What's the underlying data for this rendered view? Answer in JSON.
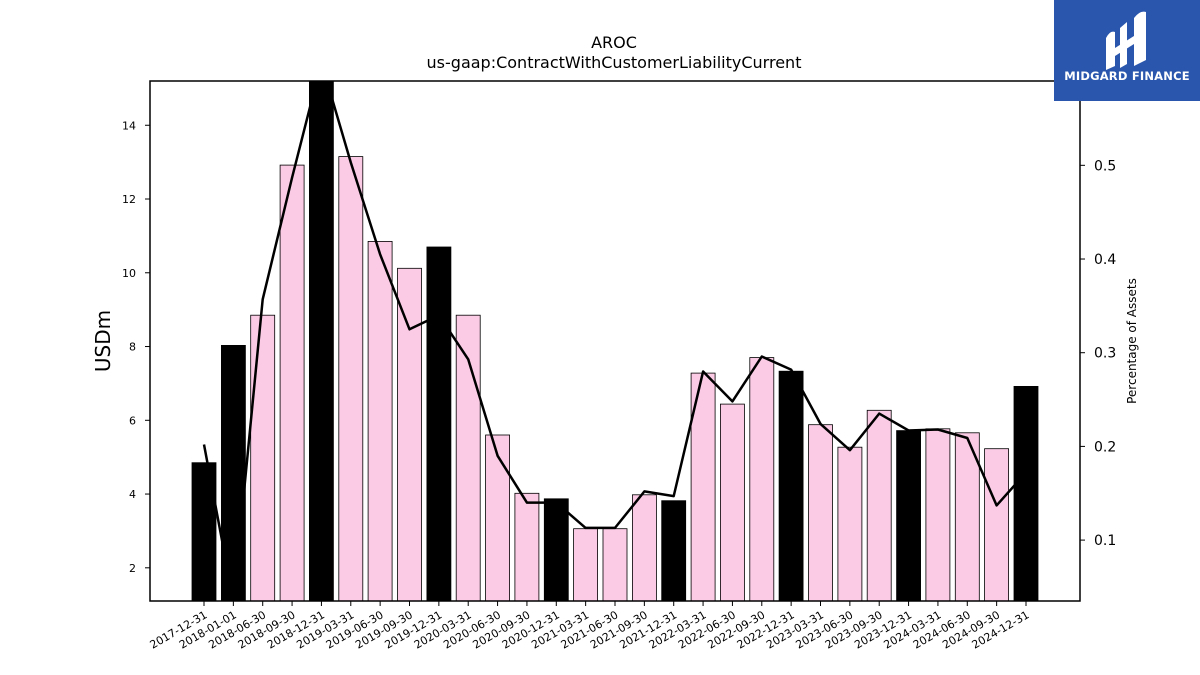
{
  "chart_data": {
    "type": "bar",
    "title": "AROC",
    "subtitle": "us-gaap:ContractWithCustomerLiabilityCurrent",
    "ylabel": "USDm",
    "y2label": "Percentage of Assets",
    "ylim": [
      1.1,
      15.2
    ],
    "y2lim": [
      0.035,
      0.59
    ],
    "yticks": [
      2,
      4,
      6,
      8,
      10,
      12,
      14
    ],
    "y2ticks": [
      0.1,
      0.2,
      0.3,
      0.4,
      0.5
    ],
    "categories": [
      "2017-12-31",
      "2018-01-01",
      "2018-06-30",
      "2018-09-30",
      "2018-12-31",
      "2019-03-31",
      "2019-06-30",
      "2019-09-30",
      "2019-12-31",
      "2020-03-31",
      "2020-06-30",
      "2020-09-30",
      "2020-12-31",
      "2021-03-31",
      "2021-06-30",
      "2021-09-30",
      "2021-12-31",
      "2022-03-31",
      "2022-06-30",
      "2022-09-30",
      "2022-12-31",
      "2023-03-31",
      "2023-06-30",
      "2023-09-30",
      "2023-12-31",
      "2024-03-31",
      "2024-06-30",
      "2024-09-30",
      "2024-12-31"
    ],
    "series": [
      {
        "type": "bar",
        "axis": "left",
        "values": [
          4.85,
          8.03,
          8.85,
          12.92,
          15.4,
          13.15,
          10.85,
          10.12,
          10.7,
          8.85,
          5.6,
          4.02,
          3.87,
          3.06,
          3.06,
          3.98,
          3.82,
          7.28,
          6.44,
          7.7,
          7.33,
          5.88,
          5.27,
          6.27,
          5.72,
          5.77,
          5.66,
          5.23,
          6.92
        ],
        "annual": [
          true,
          true,
          false,
          false,
          true,
          false,
          false,
          false,
          true,
          false,
          false,
          false,
          true,
          false,
          false,
          false,
          true,
          false,
          false,
          false,
          true,
          false,
          false,
          false,
          true,
          false,
          false,
          false,
          true
        ]
      },
      {
        "type": "line",
        "axis": "right",
        "values": [
          0.202,
          0.035,
          0.357,
          0.487,
          0.61,
          0.503,
          0.405,
          0.325,
          0.34,
          0.293,
          0.19,
          0.14,
          0.14,
          0.113,
          0.113,
          0.152,
          0.147,
          0.28,
          0.248,
          0.296,
          0.282,
          0.224,
          0.196,
          0.235,
          0.217,
          0.218,
          0.209,
          0.137,
          0.172
        ]
      }
    ],
    "colors": {
      "annual_bar": "#000000",
      "quarter_bar": "#fbcbe5",
      "bar_edge": "#000000",
      "line": "#000000"
    },
    "legend": "none",
    "grid": false
  },
  "logo": {
    "text": "MIDGARD FINANCE",
    "background": "#2a57ad",
    "icon": "midgard-logo-icon"
  }
}
